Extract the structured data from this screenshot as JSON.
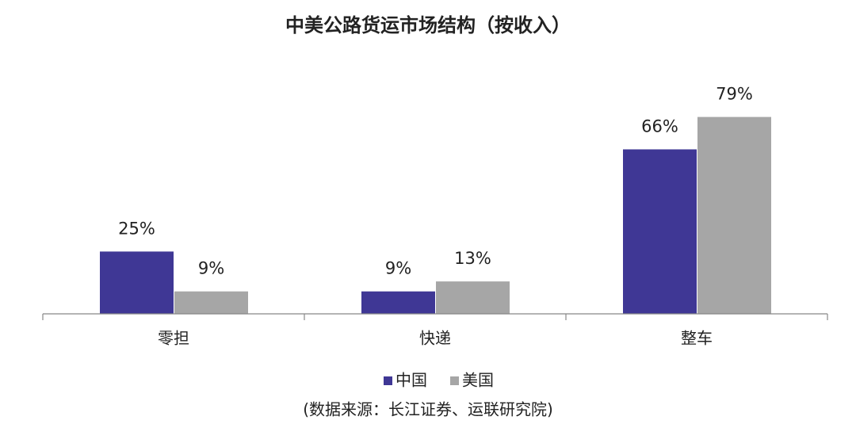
{
  "chart_data": {
    "type": "bar",
    "title": "中美公路货运市场结构（按收入）",
    "categories": [
      "零担",
      "快递",
      "整车"
    ],
    "series": [
      {
        "name": "中国",
        "color": "#3f3795",
        "values": [
          25,
          9,
          66
        ],
        "value_labels": [
          "25%",
          "9%",
          "66%"
        ]
      },
      {
        "name": "美国",
        "color": "#a6a6a6",
        "values": [
          9,
          13,
          79
        ],
        "value_labels": [
          "9%",
          "13%",
          "79%"
        ]
      }
    ],
    "ylim": [
      0,
      90
    ],
    "source": "(数据来源：长江证券、运联研究院)"
  }
}
